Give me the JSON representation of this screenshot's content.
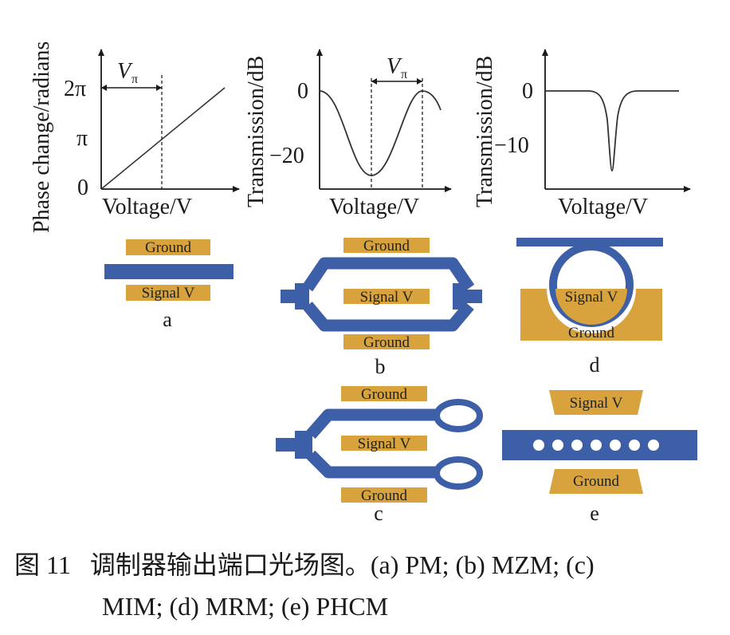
{
  "colors": {
    "waveguide": "#3d5fa8",
    "electrode": "#d8a33c",
    "axis": "#1a1a1a"
  },
  "plots": {
    "pm": {
      "ylabel": "Phase change/radians",
      "xlabel": "Voltage/V",
      "yticks": [
        "2π",
        "π",
        "0"
      ],
      "vpi": "V",
      "vpi_sub": "π"
    },
    "mzm": {
      "ylabel": "Transmission/dB",
      "xlabel": "Voltage/V",
      "yticks": [
        "0",
        "−20"
      ],
      "vpi": "V",
      "vpi_sub": "π"
    },
    "mrm": {
      "ylabel": "Transmission/dB",
      "xlabel": "Voltage/V",
      "yticks": [
        "0",
        "−10"
      ]
    }
  },
  "devices": {
    "a": {
      "ground": "Ground",
      "signal": "Signal V",
      "label": "a"
    },
    "b": {
      "ground_top": "Ground",
      "signal": "Signal V",
      "ground_bottom": "Ground",
      "label": "b"
    },
    "c": {
      "ground_top": "Ground",
      "signal": "Signal V",
      "ground_bottom": "Ground",
      "label": "c"
    },
    "d": {
      "signal": "Signal V",
      "ground": "Ground",
      "label": "d"
    },
    "e": {
      "signal": "Signal V",
      "ground": "Ground",
      "label": "e"
    }
  },
  "caption": {
    "line1_prefix": "图 11",
    "line1_text": "调制器输出端口光场图。(a) PM; (b) MZM; (c)",
    "line2_text": "MIM; (d) MRM; (e) PHCM"
  }
}
